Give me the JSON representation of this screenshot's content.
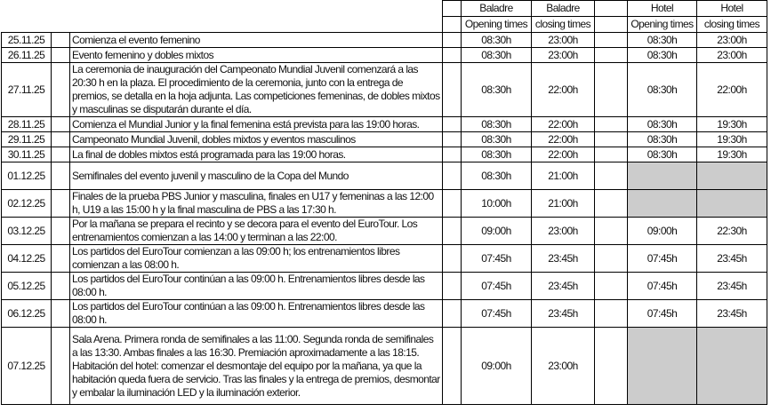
{
  "header": {
    "baladre_open": [
      "Baladre",
      "Opening times"
    ],
    "baladre_close": [
      "Baladre",
      "closing times"
    ],
    "hotel_open": [
      "Hotel",
      "Opening times"
    ],
    "hotel_close": [
      "Hotel",
      "closing times"
    ]
  },
  "rows": [
    {
      "date": "25.11.25",
      "desc": "Comienza el evento femenino",
      "b_open": "08:30h",
      "b_close": "23:00h",
      "h_open": "08:30h",
      "h_close": "23:00h",
      "h_closed": false
    },
    {
      "date": "26.11.25",
      "desc": "Evento femenino y dobles mixtos",
      "b_open": "08:30h",
      "b_close": "23:00h",
      "h_open": "08:30h",
      "h_close": "23:00h",
      "h_closed": false
    },
    {
      "date": "27.11.25",
      "desc": "La ceremonia de inauguración del Campeonato Mundial Juvenil comenzará a las 20:30 h en la plaza. El procedimiento de la ceremonia, junto con la entrega de premios, se detalla en la hoja adjunta. Las competiciones femeninas, de dobles mixtos y masculinas se disputarán durante el día.",
      "b_open": "08:30h",
      "b_close": "22:00h",
      "h_open": "08:30h",
      "h_close": "22:00h",
      "h_closed": false
    },
    {
      "date": "28.11.25",
      "desc": "Comienza el Mundial Junior y la final femenina está prevista para las 19:00 horas.",
      "b_open": "08:30h",
      "b_close": "22:00h",
      "h_open": "08:30h",
      "h_close": "19:30h",
      "h_closed": false
    },
    {
      "date": "29.11.25",
      "desc": "Campeonato Mundial Juvenil, dobles mixtos y eventos masculinos",
      "b_open": "08:30h",
      "b_close": "22:00h",
      "h_open": "08:30h",
      "h_close": "19:30h",
      "h_closed": false
    },
    {
      "date": "30.11.25",
      "desc": "La final de dobles mixtos está programada para las 19:00 horas.",
      "b_open": "08:30h",
      "b_close": "22:00h",
      "h_open": "08:30h",
      "h_close": "19:30h",
      "h_closed": false
    },
    {
      "date": "01.12.25",
      "desc": "Semifinales del evento juvenil y masculino de la Copa del Mundo",
      "b_open": "08:30h",
      "b_close": "21:00h",
      "h_open": "",
      "h_close": "",
      "h_closed": true
    },
    {
      "date": "02.12.25",
      "desc": "Finales de la prueba PBS Junior y masculina, finales en U17 y femeninas a las 12:00 h, U19 a las 15:00 h y la final masculina de PBS a las 17:30 h.",
      "b_open": "10:00h",
      "b_close": "21:00h",
      "h_open": "",
      "h_close": "",
      "h_closed": true
    },
    {
      "date": "03.12.25",
      "desc": "Por la mañana se prepara el recinto y se decora para el evento del EuroTour. Los entrenamientos comienzan a las 14:00 y terminan a las 22:00.",
      "b_open": "09:00h",
      "b_close": "23:00h",
      "h_open": "09:00h",
      "h_close": "22:30h",
      "h_closed": false
    },
    {
      "date": "04.12.25",
      "desc": "Los partidos del EuroTour comienzan a las 09:00 h; los entrenamientos libres comienzan a las 08:00 h.",
      "b_open": "07:45h",
      "b_close": "23:45h",
      "h_open": "07:45h",
      "h_close": "23:45h",
      "h_closed": false
    },
    {
      "date": "05.12.25",
      "desc": "Los partidos del EuroTour continúan a las 09:00 h. Entrenamientos libres desde las 08:00 h.",
      "b_open": "07:45h",
      "b_close": "23:45h",
      "h_open": "07:45h",
      "h_close": "23:45h",
      "h_closed": false
    },
    {
      "date": "06.12.25",
      "desc": "Los partidos del EuroTour continúan a las 09:00 h. Entrenamientos libres desde las 08:00 h.",
      "b_open": "07:45h",
      "b_close": "23:45h",
      "h_open": "07:45h",
      "h_close": "23:45h",
      "h_closed": false
    },
    {
      "date": "07.12.25",
      "desc": "Sala Arena. Primera ronda de semifinales a las 11:00. Segunda ronda de semifinales a las 13:30. Ambas finales a las 16:30. Premiación aproximadamente a las 18:15. Habitación del hotel: comenzar el desmontaje del equipo por la mañana, ya que la habitación queda fuera de servicio. Tras las finales y la entrega de premios, desmontar y embalar la iluminación LED y la iluminación exterior.",
      "b_open": "09:00h",
      "b_close": "23:00h",
      "h_open": "",
      "h_close": "",
      "h_closed": true
    }
  ],
  "colors": {
    "closed_cell": "#cccccc",
    "border": "#000000"
  }
}
